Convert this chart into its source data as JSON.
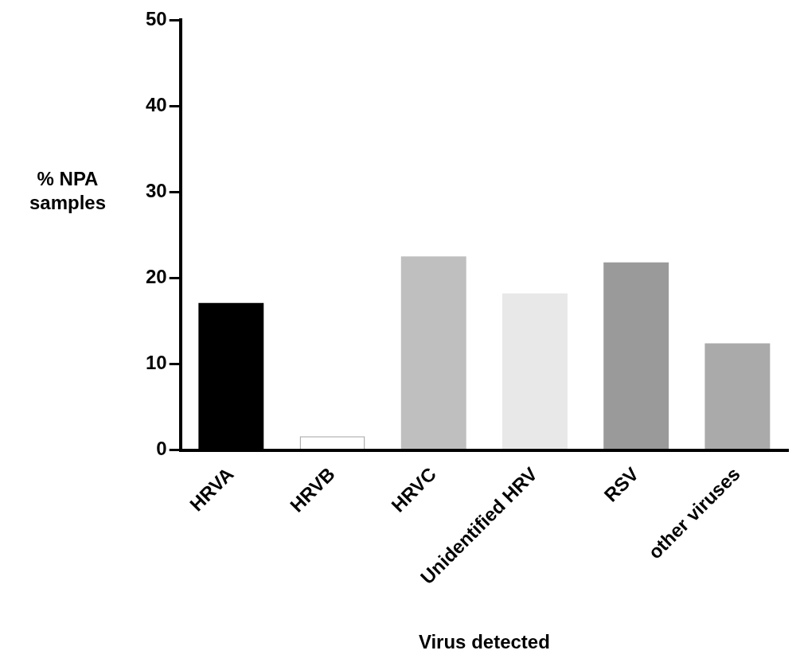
{
  "chart_data": {
    "type": "bar",
    "xlabel": "Virus detected",
    "ylabel": "% NPA samples",
    "categories": [
      "HRVA",
      "HRVB",
      "HRVC",
      "Unidentified HRV",
      "RSV",
      "other viruses"
    ],
    "values": [
      17.1,
      1.6,
      22.5,
      18.2,
      21.8,
      12.4
    ],
    "colors": [
      "#000000",
      "#ffffff",
      "#bfbfbf",
      "#e8e8e8",
      "#9a9a9a",
      "#aaaaaa"
    ],
    "ylim": [
      0,
      50
    ],
    "yticks": [
      0,
      10,
      20,
      30,
      40,
      50
    ],
    "grid": false,
    "legend": false
  }
}
